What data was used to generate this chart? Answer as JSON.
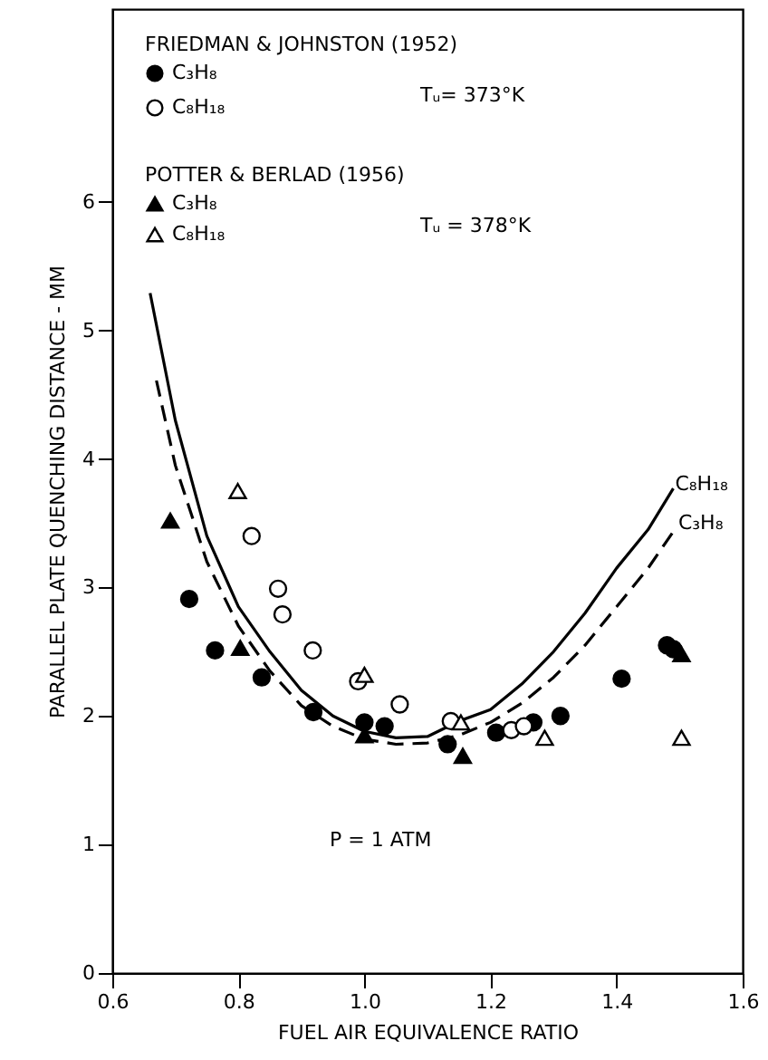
{
  "chart_data": {
    "type": "scatter",
    "xlabel": "FUEL AIR EQUIVALENCE RATIO",
    "ylabel": "PARALLEL PLATE QUENCHING DISTANCE - MM",
    "xlim": [
      0.6,
      1.6
    ],
    "xticks": [
      {
        "value": 0.6,
        "label": "0.6"
      },
      {
        "value": 0.8,
        "label": "0.8"
      },
      {
        "value": 1.0,
        "label": "1.0"
      },
      {
        "value": 1.2,
        "label": "1.2"
      },
      {
        "value": 1.4,
        "label": "1.4"
      },
      {
        "value": 1.6,
        "label": "1.6"
      }
    ],
    "ylim": [
      0,
      7.5
    ],
    "yticks": [
      0,
      1,
      2,
      3,
      4,
      5,
      6
    ],
    "grid": false,
    "legend": "top left",
    "annotations": [
      "FRIEDMAN & JOHNSTON (1952)",
      "Tᵤ= 373°K",
      "POTTER & BERLAD (1956)",
      "Tᵤ = 378°K",
      "P = 1 ATM"
    ],
    "series": [
      {
        "name": "C₃H₈",
        "marker": "circle",
        "color": "#000000",
        "x": [
          0.722,
          0.763,
          0.837,
          0.919,
          1.0,
          1.032,
          1.132,
          1.209,
          1.268,
          1.311,
          1.408,
          1.48,
          1.49
        ],
        "values": [
          2.91,
          2.51,
          2.3,
          2.03,
          1.95,
          1.92,
          1.78,
          1.87,
          1.95,
          2.0,
          2.29,
          2.55,
          2.52
        ]
      },
      {
        "name": "C₈H₁₈",
        "marker": "circle",
        "color": "#ffffff",
        "x": [
          0.821,
          0.863,
          0.87,
          0.918,
          0.99,
          1.056,
          1.137,
          1.233,
          1.253
        ],
        "values": [
          3.4,
          2.99,
          2.79,
          2.51,
          2.27,
          2.09,
          1.96,
          1.89,
          1.92
        ]
      },
      {
        "name": "C₃H₈",
        "marker": "triangle",
        "color": "#000000",
        "x": [
          0.692,
          0.803,
          1.0,
          1.156,
          1.503
        ],
        "values": [
          3.52,
          2.53,
          1.85,
          1.69,
          2.48
        ]
      },
      {
        "name": "C₈H₁₈",
        "marker": "triangle",
        "color": "#ffffff",
        "x": [
          0.799,
          1.0,
          1.153,
          1.286,
          1.503
        ],
        "values": [
          3.75,
          2.32,
          1.95,
          1.83,
          1.83
        ]
      },
      {
        "name": "C₈H₁₈",
        "type": "line",
        "line_style": "solid",
        "color": "#000000",
        "x": [
          0.66,
          0.7,
          0.75,
          0.8,
          0.85,
          0.9,
          0.95,
          1.0,
          1.05,
          1.1,
          1.15,
          1.2,
          1.25,
          1.3,
          1.35,
          1.4,
          1.45,
          1.49
        ],
        "values": [
          5.29,
          4.3,
          3.4,
          2.85,
          2.5,
          2.2,
          2.0,
          1.88,
          1.83,
          1.84,
          1.96,
          2.05,
          2.25,
          2.5,
          2.8,
          3.15,
          3.45,
          3.77
        ]
      },
      {
        "name": "C₃H₈",
        "type": "line",
        "line_style": "dashed",
        "color": "#000000",
        "x": [
          0.67,
          0.7,
          0.75,
          0.8,
          0.85,
          0.9,
          0.95,
          1.0,
          1.05,
          1.1,
          1.15,
          1.2,
          1.25,
          1.3,
          1.35,
          1.4,
          1.45,
          1.495
        ],
        "values": [
          4.61,
          3.95,
          3.2,
          2.7,
          2.35,
          2.08,
          1.92,
          1.82,
          1.78,
          1.79,
          1.85,
          1.95,
          2.1,
          2.3,
          2.55,
          2.85,
          3.15,
          3.47
        ]
      }
    ]
  }
}
